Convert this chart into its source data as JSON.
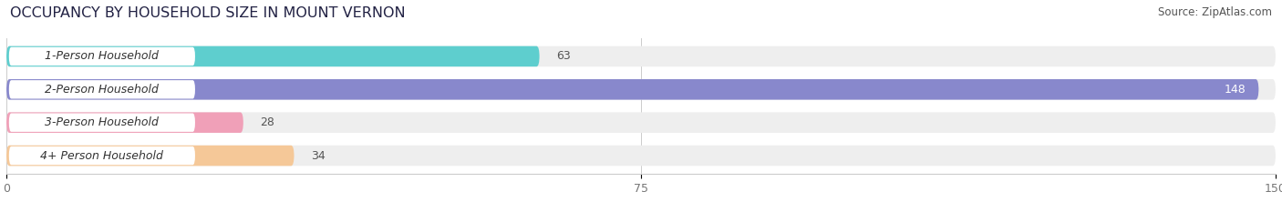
{
  "title": "OCCUPANCY BY HOUSEHOLD SIZE IN MOUNT VERNON",
  "source": "Source: ZipAtlas.com",
  "categories": [
    "1-Person Household",
    "2-Person Household",
    "3-Person Household",
    "4+ Person Household"
  ],
  "values": [
    63,
    148,
    28,
    34
  ],
  "bar_colors": [
    "#5ecece",
    "#8888cc",
    "#f0a0b8",
    "#f5c898"
  ],
  "bg_colors": [
    "#eeeeee",
    "#eeeeee",
    "#eeeeee",
    "#eeeeee"
  ],
  "xlim": [
    0,
    150
  ],
  "xticks": [
    0,
    75,
    150
  ],
  "title_fontsize": 11.5,
  "label_fontsize": 9,
  "value_fontsize": 9,
  "source_fontsize": 8.5,
  "bar_height": 0.62,
  "figsize": [
    14.06,
    2.33
  ],
  "dpi": 100,
  "bg_color": "#ffffff",
  "title_color": "#222244",
  "label_color": "#333333",
  "value_color_outside": "#555555",
  "value_color_inside": "#ffffff",
  "grid_color": "#cccccc",
  "tick_color": "#777777"
}
